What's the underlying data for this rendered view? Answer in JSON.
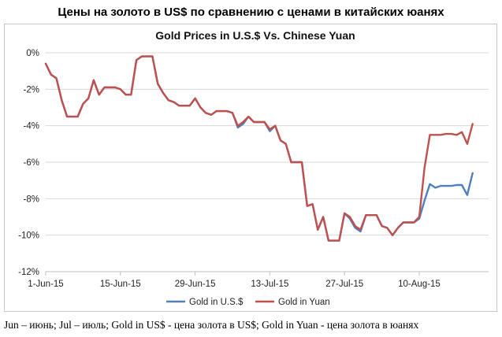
{
  "title_ru": "Цены на золото в US$ по сравнению с ценами в китайских юанях",
  "footnote": "Jun – июнь; Jul – июль; Gold in US$ - цена золота в US$; Gold in Yuan - цена золота в юанях",
  "chart_data": {
    "type": "line",
    "title": "Gold Prices in U.S.$ Vs. Chinese Yuan",
    "xlabel": "",
    "ylabel": "",
    "ylim": [
      -12,
      0
    ],
    "yticks": [
      0,
      -2,
      -4,
      -6,
      -8,
      -10,
      -12
    ],
    "ytick_labels": [
      "0%",
      "-2%",
      "-4%",
      "-6%",
      "-8%",
      "-10%",
      "-12%"
    ],
    "xtick_labels": [
      "1-Jun-15",
      "15-Jun-15",
      "29-Jun-15",
      "13-Jul-15",
      "27-Jul-15",
      "10-Aug-15"
    ],
    "xtick_days": [
      0,
      14,
      28,
      42,
      56,
      70
    ],
    "x_range_days": [
      0,
      83
    ],
    "grid": "horizontal",
    "legend_position": "bottom",
    "series": [
      {
        "name": "Gold in U.S.$",
        "color": "#4f7fbd",
        "points": [
          [
            0,
            -0.6
          ],
          [
            1,
            -1.2
          ],
          [
            2,
            -1.4
          ],
          [
            3,
            -2.6
          ],
          [
            4,
            -3.5
          ],
          [
            5,
            -3.5
          ],
          [
            6,
            -3.5
          ],
          [
            7,
            -2.8
          ],
          [
            8,
            -2.5
          ],
          [
            9,
            -1.5
          ],
          [
            10,
            -2.3
          ],
          [
            11,
            -1.9
          ],
          [
            12,
            -1.9
          ],
          [
            13,
            -1.9
          ],
          [
            14,
            -2.0
          ],
          [
            15,
            -2.3
          ],
          [
            16,
            -2.3
          ],
          [
            17,
            -0.4
          ],
          [
            18,
            -0.2
          ],
          [
            19,
            -0.2
          ],
          [
            20,
            -0.2
          ],
          [
            21,
            -1.7
          ],
          [
            22,
            -2.2
          ],
          [
            23,
            -2.6
          ],
          [
            24,
            -2.7
          ],
          [
            25,
            -2.9
          ],
          [
            26,
            -2.9
          ],
          [
            27,
            -2.9
          ],
          [
            28,
            -2.5
          ],
          [
            29,
            -3.0
          ],
          [
            30,
            -3.3
          ],
          [
            31,
            -3.4
          ],
          [
            32,
            -3.2
          ],
          [
            33,
            -3.2
          ],
          [
            34,
            -3.2
          ],
          [
            35,
            -3.3
          ],
          [
            36,
            -4.1
          ],
          [
            37,
            -3.9
          ],
          [
            38,
            -3.5
          ],
          [
            39,
            -3.8
          ],
          [
            40,
            -3.8
          ],
          [
            41,
            -3.8
          ],
          [
            42,
            -4.3
          ],
          [
            43,
            -4.0
          ],
          [
            44,
            -4.8
          ],
          [
            45,
            -5.0
          ],
          [
            46,
            -6.0
          ],
          [
            47,
            -6.0
          ],
          [
            48,
            -6.0
          ],
          [
            49,
            -8.4
          ],
          [
            50,
            -8.3
          ],
          [
            51,
            -9.7
          ],
          [
            52,
            -9.0
          ],
          [
            53,
            -10.3
          ],
          [
            54,
            -10.3
          ],
          [
            55,
            -10.3
          ],
          [
            56,
            -8.8
          ],
          [
            57,
            -9.1
          ],
          [
            58,
            -9.6
          ],
          [
            59,
            -9.8
          ],
          [
            60,
            -8.9
          ],
          [
            61,
            -8.9
          ],
          [
            62,
            -8.9
          ],
          [
            63,
            -9.5
          ],
          [
            64,
            -9.6
          ],
          [
            65,
            -10.0
          ],
          [
            66,
            -9.6
          ],
          [
            67,
            -9.3
          ],
          [
            68,
            -9.3
          ],
          [
            69,
            -9.3
          ],
          [
            70,
            -9.1
          ],
          [
            71,
            -8.1
          ],
          [
            72,
            -7.2
          ],
          [
            73,
            -7.4
          ],
          [
            74,
            -7.3
          ],
          [
            75,
            -7.3
          ],
          [
            76,
            -7.3
          ],
          [
            77,
            -7.25
          ],
          [
            78,
            -7.25
          ],
          [
            79,
            -7.8
          ],
          [
            80,
            -6.6
          ]
        ]
      },
      {
        "name": "Gold in Yuan",
        "color": "#c0504d",
        "points": [
          [
            0,
            -0.6
          ],
          [
            1,
            -1.2
          ],
          [
            2,
            -1.4
          ],
          [
            3,
            -2.6
          ],
          [
            4,
            -3.5
          ],
          [
            5,
            -3.5
          ],
          [
            6,
            -3.5
          ],
          [
            7,
            -2.8
          ],
          [
            8,
            -2.5
          ],
          [
            9,
            -1.5
          ],
          [
            10,
            -2.3
          ],
          [
            11,
            -1.9
          ],
          [
            12,
            -1.9
          ],
          [
            13,
            -1.9
          ],
          [
            14,
            -2.0
          ],
          [
            15,
            -2.3
          ],
          [
            16,
            -2.3
          ],
          [
            17,
            -0.4
          ],
          [
            18,
            -0.2
          ],
          [
            19,
            -0.2
          ],
          [
            20,
            -0.2
          ],
          [
            21,
            -1.7
          ],
          [
            22,
            -2.2
          ],
          [
            23,
            -2.6
          ],
          [
            24,
            -2.7
          ],
          [
            25,
            -2.9
          ],
          [
            26,
            -2.9
          ],
          [
            27,
            -2.9
          ],
          [
            28,
            -2.5
          ],
          [
            29,
            -3.0
          ],
          [
            30,
            -3.3
          ],
          [
            31,
            -3.4
          ],
          [
            32,
            -3.2
          ],
          [
            33,
            -3.2
          ],
          [
            34,
            -3.2
          ],
          [
            35,
            -3.3
          ],
          [
            36,
            -4.0
          ],
          [
            37,
            -3.8
          ],
          [
            38,
            -3.5
          ],
          [
            39,
            -3.8
          ],
          [
            40,
            -3.8
          ],
          [
            41,
            -3.8
          ],
          [
            42,
            -4.2
          ],
          [
            43,
            -4.0
          ],
          [
            44,
            -4.8
          ],
          [
            45,
            -5.0
          ],
          [
            46,
            -6.0
          ],
          [
            47,
            -6.0
          ],
          [
            48,
            -6.0
          ],
          [
            49,
            -8.4
          ],
          [
            50,
            -8.3
          ],
          [
            51,
            -9.7
          ],
          [
            52,
            -9.0
          ],
          [
            53,
            -10.3
          ],
          [
            54,
            -10.3
          ],
          [
            55,
            -10.3
          ],
          [
            56,
            -8.8
          ],
          [
            57,
            -9.0
          ],
          [
            58,
            -9.5
          ],
          [
            59,
            -9.7
          ],
          [
            60,
            -8.9
          ],
          [
            61,
            -8.9
          ],
          [
            62,
            -8.9
          ],
          [
            63,
            -9.5
          ],
          [
            64,
            -9.6
          ],
          [
            65,
            -10.0
          ],
          [
            66,
            -9.6
          ],
          [
            67,
            -9.3
          ],
          [
            68,
            -9.3
          ],
          [
            69,
            -9.3
          ],
          [
            70,
            -9.0
          ],
          [
            71,
            -6.3
          ],
          [
            72,
            -4.5
          ],
          [
            73,
            -4.5
          ],
          [
            74,
            -4.5
          ],
          [
            75,
            -4.45
          ],
          [
            76,
            -4.45
          ],
          [
            77,
            -4.5
          ],
          [
            78,
            -4.35
          ],
          [
            79,
            -5.0
          ],
          [
            80,
            -3.9
          ]
        ]
      }
    ]
  }
}
